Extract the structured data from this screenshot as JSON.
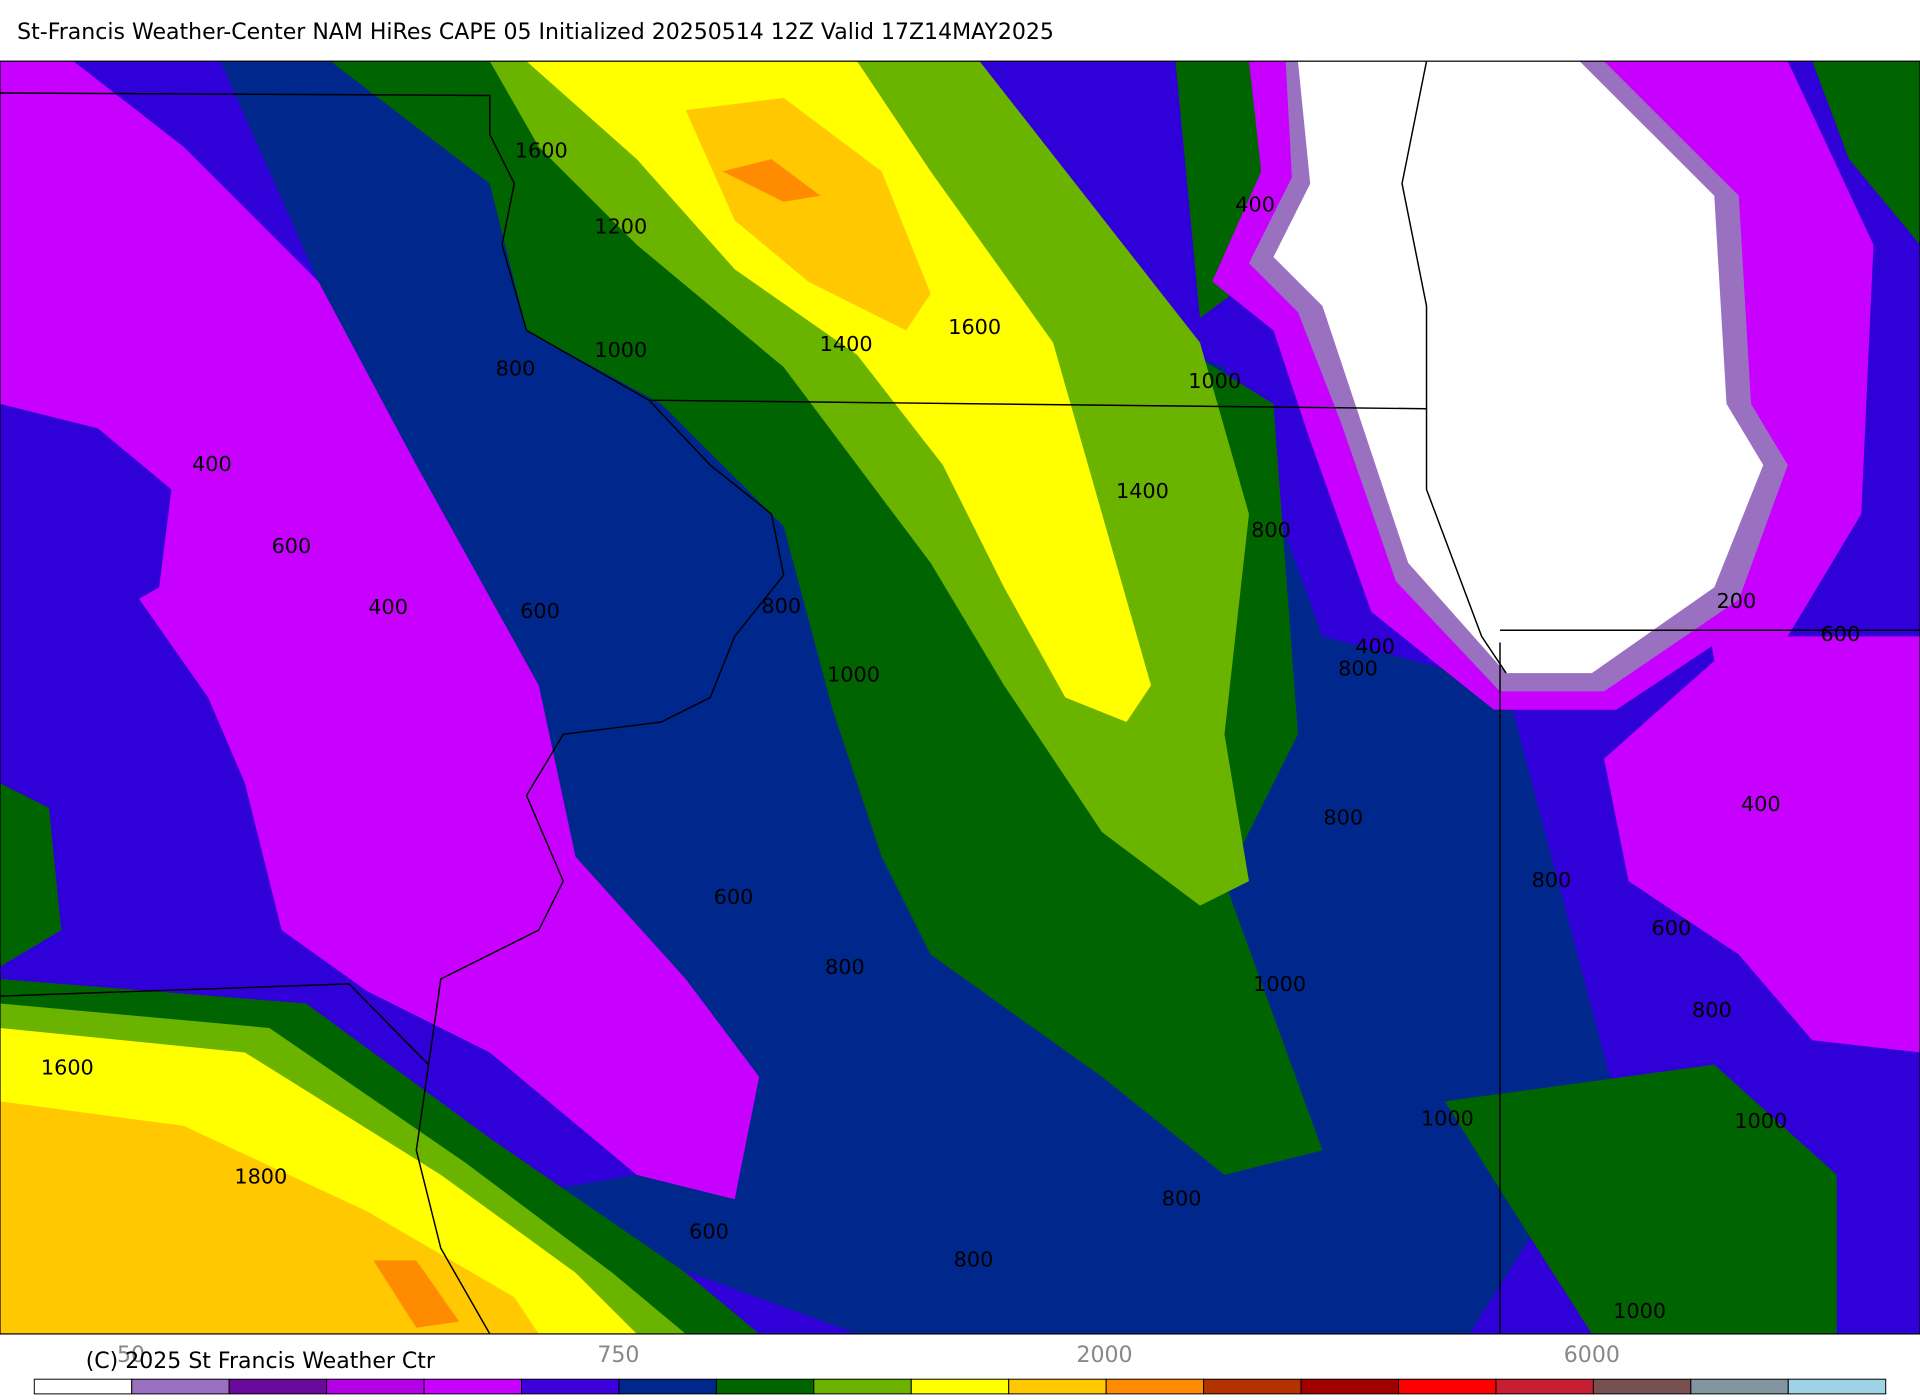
{
  "header": {
    "title": "St-Francis Weather-Center NAM HiRes CAPE  05 Initialized 20250514 12Z Valid 17Z14MAY2025"
  },
  "map": {
    "contour_labels": [
      1600,
      1200,
      1000,
      800,
      1400,
      1600,
      400,
      1000,
      1400,
      800,
      400,
      600,
      400,
      600,
      800,
      1000,
      400,
      800,
      200,
      600,
      800,
      400,
      800,
      600,
      600,
      800,
      1000,
      800,
      1600,
      1800,
      1000,
      1000,
      800,
      600,
      800,
      1000
    ]
  },
  "colorbar": {
    "colors": [
      "#ffffff",
      "#9a70c0",
      "#6a0a9a",
      "#b400e6",
      "#c800ff",
      "#3c00dc",
      "#00288c",
      "#006400",
      "#6ab400",
      "#ffff00",
      "#ffc800",
      "#ff8c00",
      "#b43200",
      "#a00000",
      "#ff0000",
      "#c81e32",
      "#785050",
      "#8296a0",
      "#a0d2e6"
    ],
    "labels": [
      50,
      750,
      2000,
      6000
    ]
  },
  "footer": {
    "copyright": "(C) 2025 St Francis Weather Ctr"
  }
}
